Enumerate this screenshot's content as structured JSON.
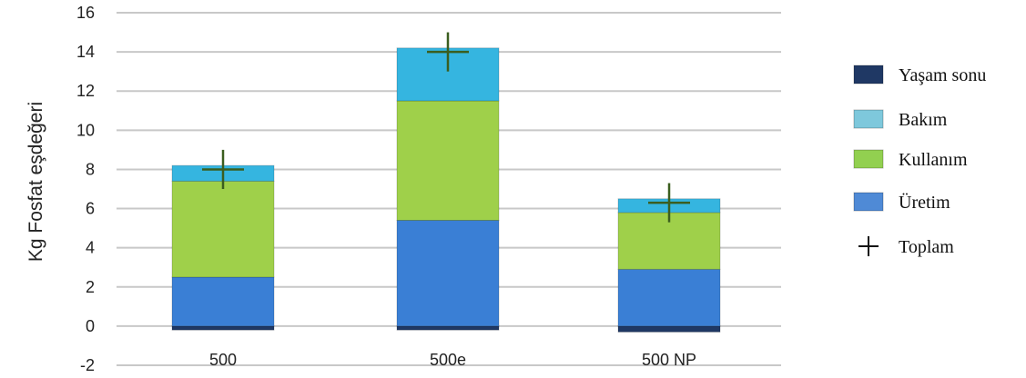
{
  "chart_data": {
    "type": "bar",
    "stacked": true,
    "ylabel": "Kg Fosfat eşdeğeri",
    "xlabel": "",
    "ylim": [
      -2,
      16
    ],
    "yticks": [
      -2,
      0,
      2,
      4,
      6,
      8,
      10,
      12,
      14,
      16
    ],
    "grid": true,
    "legend_position": "right",
    "categories": [
      "500",
      "500e",
      "500 NP"
    ],
    "series": [
      {
        "name": "Yaşam sonu",
        "color": "#1f3864",
        "values": [
          -0.2,
          -0.2,
          -0.3
        ]
      },
      {
        "name": "Üretim",
        "color": "#3a7fd5",
        "values": [
          2.5,
          5.4,
          2.9
        ]
      },
      {
        "name": "Kullanım",
        "color": "#9fd04a",
        "values": [
          4.9,
          6.1,
          2.9
        ]
      },
      {
        "name": "Bakım",
        "color": "#35b5e0",
        "values": [
          0.8,
          2.7,
          0.7
        ]
      }
    ],
    "totals": {
      "name": "Toplam",
      "values": [
        8.0,
        14.0,
        6.3
      ],
      "error_low": [
        7.0,
        13.0,
        5.3
      ],
      "error_high": [
        9.0,
        15.0,
        7.3
      ]
    },
    "legend_order": [
      "Yaşam sonu",
      "Bakım",
      "Kullanım",
      "Üretim",
      "Toplam"
    ],
    "legend_swatch_colors": {
      "Yaşam sonu": "#1f3864",
      "Bakım": "#7ec8dc",
      "Kullanım": "#92d050",
      "Üretim": "#4f8ad6"
    }
  }
}
